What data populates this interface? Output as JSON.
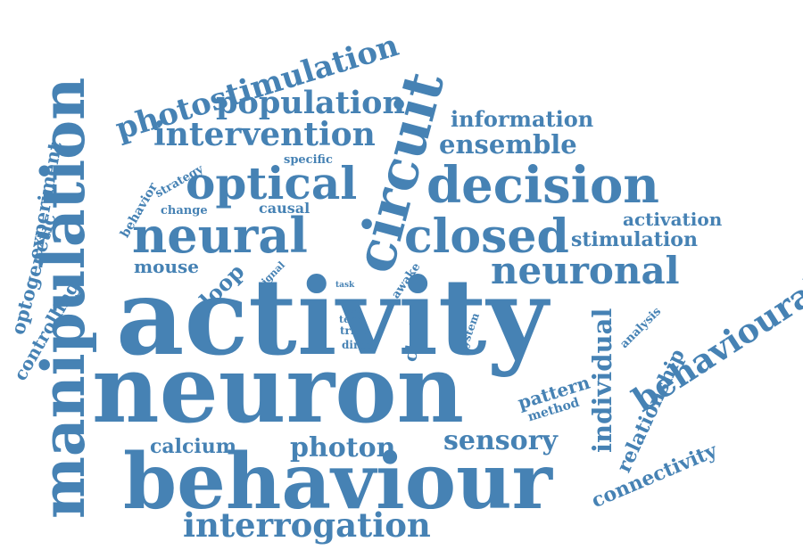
{
  "color": "#4682b4",
  "words": [
    {
      "id": "activity",
      "text": "activity"
    },
    {
      "id": "neuron",
      "text": "neuron"
    },
    {
      "id": "behaviour",
      "text": "behaviour"
    },
    {
      "id": "manipulation",
      "text": "manipulation"
    },
    {
      "id": "circuit",
      "text": "circuit"
    },
    {
      "id": "decision",
      "text": "decision"
    },
    {
      "id": "neural",
      "text": "neural"
    },
    {
      "id": "closed",
      "text": "closed"
    },
    {
      "id": "optical",
      "text": "optical"
    },
    {
      "id": "neuronal",
      "text": "neuronal"
    },
    {
      "id": "photostimulation",
      "text": "photostimulation"
    },
    {
      "id": "population",
      "text": "population"
    },
    {
      "id": "intervention",
      "text": "intervention"
    },
    {
      "id": "interrogation",
      "text": "interrogation"
    },
    {
      "id": "behavioural",
      "text": "behavioural"
    },
    {
      "id": "information",
      "text": "information"
    },
    {
      "id": "ensemble",
      "text": "ensemble"
    },
    {
      "id": "activation",
      "text": "activation"
    },
    {
      "id": "stimulation",
      "text": "stimulation"
    },
    {
      "id": "sensory",
      "text": "sensory"
    },
    {
      "id": "photon",
      "text": "photon"
    },
    {
      "id": "calcium",
      "text": "calcium"
    },
    {
      "id": "individual",
      "text": "individual"
    },
    {
      "id": "relationship",
      "text": "relationship"
    },
    {
      "id": "connectivity",
      "text": "connectivity"
    },
    {
      "id": "pattern",
      "text": "pattern"
    },
    {
      "id": "method",
      "text": "method"
    },
    {
      "id": "analysis",
      "text": "analysis"
    },
    {
      "id": "mouse",
      "text": "mouse"
    },
    {
      "id": "loop",
      "text": "loop"
    },
    {
      "id": "causal",
      "text": "causal"
    },
    {
      "id": "change",
      "text": "change"
    },
    {
      "id": "specific",
      "text": "specific"
    },
    {
      "id": "strategy",
      "text": "strategy"
    },
    {
      "id": "behavior",
      "text": "behavior"
    },
    {
      "id": "experiment",
      "text": "experiment"
    },
    {
      "id": "optogenetic",
      "text": "optogenetic"
    },
    {
      "id": "controlling",
      "text": "controlling"
    },
    {
      "id": "signal",
      "text": "signal"
    },
    {
      "id": "awake",
      "text": "awake"
    },
    {
      "id": "task",
      "text": "task"
    },
    {
      "id": "test",
      "text": "test"
    },
    {
      "id": "term",
      "text": "term"
    },
    {
      "id": "trial",
      "text": "trial"
    },
    {
      "id": "direct",
      "text": "direct"
    },
    {
      "id": "choice",
      "text": "choice"
    },
    {
      "id": "system",
      "text": "system"
    }
  ]
}
